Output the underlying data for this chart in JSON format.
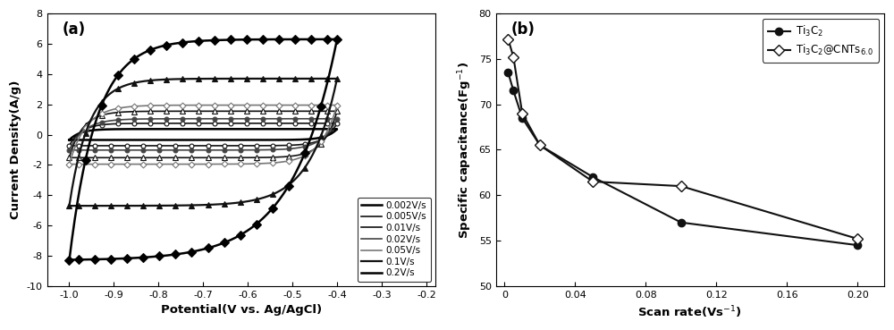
{
  "panel_a": {
    "xlabel": "Potential(V vs. Ag/AgCl)",
    "ylabel": "Current Density(A/g)",
    "xlim": [
      -1.05,
      -0.18
    ],
    "ylim": [
      -10,
      8
    ],
    "xticks": [
      -1.0,
      -0.9,
      -0.8,
      -0.7,
      -0.6,
      -0.5,
      -0.4,
      -0.3,
      -0.2
    ],
    "yticks": [
      -10,
      -8,
      -6,
      -4,
      -2,
      0,
      2,
      4,
      6,
      8
    ],
    "scan_rates": [
      {
        "label": "0.002V/s",
        "color": "#000000",
        "linewidth": 1.8,
        "marker": "None",
        "markersize": 0,
        "markerfacecolor": "black",
        "ytop": 0.37,
        "ybot": -0.35,
        "rise_k": 25,
        "fall_k": 25
      },
      {
        "label": "0.005V/s",
        "color": "#111111",
        "linewidth": 1.2,
        "marker": "o",
        "markersize": 3.5,
        "markerfacecolor": "white",
        "ytop": 0.75,
        "ybot": -0.73,
        "rise_k": 22,
        "fall_k": 22
      },
      {
        "label": "0.01V/s",
        "color": "#111111",
        "linewidth": 1.2,
        "marker": "^",
        "markersize": 4,
        "markerfacecolor": "white",
        "ytop": 1.55,
        "ybot": -1.52,
        "rise_k": 20,
        "fall_k": 20
      },
      {
        "label": "0.02V/s",
        "color": "#444444",
        "linewidth": 1.2,
        "marker": "o",
        "markersize": 3.5,
        "markerfacecolor": "#444444",
        "ytop": 1.05,
        "ybot": -1.02,
        "rise_k": 18,
        "fall_k": 18
      },
      {
        "label": "0.05V/s",
        "color": "#777777",
        "linewidth": 1.2,
        "marker": "D",
        "markersize": 3.5,
        "markerfacecolor": "white",
        "ytop": 1.95,
        "ybot": -1.95,
        "rise_k": 16,
        "fall_k": 16
      },
      {
        "label": "0.1V/s",
        "color": "#111111",
        "linewidth": 1.6,
        "marker": "^",
        "markersize": 5,
        "markerfacecolor": "#111111",
        "ytop": 3.7,
        "ybot": -4.7,
        "rise_k": 14,
        "fall_k": 10
      },
      {
        "label": "0.2V/s",
        "color": "#000000",
        "linewidth": 1.8,
        "marker": "D",
        "markersize": 5,
        "markerfacecolor": "#000000",
        "ytop": 6.3,
        "ybot": -8.3,
        "rise_k": 10,
        "fall_k": 6
      }
    ]
  },
  "panel_b": {
    "xlabel": "Scan rate(Vs$^{-1}$)",
    "ylabel": "Specific capacitance(Fg$^{-1}$)",
    "xlim": [
      -0.005,
      0.215
    ],
    "ylim": [
      50,
      80
    ],
    "xticks": [
      0.0,
      0.04,
      0.08,
      0.12,
      0.16,
      0.2
    ],
    "yticks": [
      50,
      55,
      60,
      65,
      70,
      75,
      80
    ],
    "series": [
      {
        "label": "Ti$_3$C$_2$",
        "marker": "o",
        "markerfacecolor": "#111111",
        "color": "#111111",
        "linewidth": 1.5,
        "markersize": 6,
        "x": [
          0.002,
          0.005,
          0.01,
          0.02,
          0.05,
          0.1,
          0.2
        ],
        "y": [
          73.5,
          71.5,
          68.5,
          65.5,
          62.0,
          57.0,
          54.5
        ]
      },
      {
        "label": "Ti$_3$C$_2$@CNTs$_{6.0}$",
        "marker": "D",
        "markerfacecolor": "white",
        "color": "#111111",
        "linewidth": 1.5,
        "markersize": 6,
        "x": [
          0.002,
          0.005,
          0.01,
          0.02,
          0.05,
          0.1,
          0.2
        ],
        "y": [
          77.2,
          75.2,
          69.0,
          65.5,
          61.5,
          61.0,
          55.2
        ]
      }
    ]
  }
}
